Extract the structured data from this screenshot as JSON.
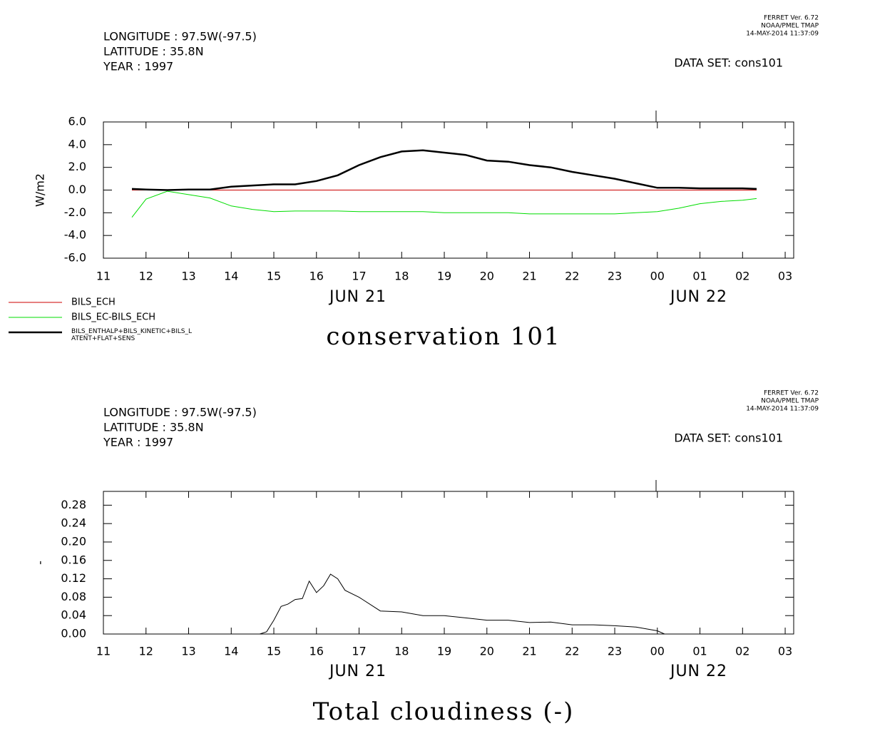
{
  "chart_data": [
    {
      "type": "line",
      "ferret": [
        "FERRET Ver. 6.72",
        "NOAA/PMEL TMAP",
        "14-MAY-2014 11:37:09"
      ],
      "info": [
        "LONGITUDE : 97.5W(-97.5)",
        "LATITUDE : 35.8N",
        "YEAR : 1997"
      ],
      "dataset": "DATA SET: cons101",
      "title": "conservation 101",
      "ylabel": "W/m2",
      "date_labels": [
        "JUN 21",
        "JUN 22"
      ],
      "xlim": [
        11,
        27.2
      ],
      "xticks": [
        11,
        12,
        13,
        14,
        15,
        16,
        17,
        18,
        19,
        20,
        21,
        22,
        23,
        {
          "value": 24,
          "label": "00"
        },
        {
          "value": 25,
          "label": "01"
        },
        {
          "value": 26,
          "label": "02"
        },
        {
          "value": 27,
          "label": "03"
        }
      ],
      "ylim": [
        -6,
        6
      ],
      "yticks": [
        {
          "value": -6,
          "label": "-6.0"
        },
        {
          "value": -4,
          "label": "-4.0"
        },
        {
          "value": -2,
          "label": "-2.0"
        },
        {
          "value": 0,
          "label": "0.0"
        },
        {
          "value": 2,
          "label": "2.0"
        },
        {
          "value": 4,
          "label": "4.0"
        },
        {
          "value": 6,
          "label": "6.0"
        }
      ],
      "x": [
        11.67,
        12,
        12.5,
        13,
        13.5,
        14,
        14.5,
        15,
        15.5,
        16,
        16.5,
        17,
        17.5,
        18,
        18.5,
        19,
        19.5,
        20,
        20.5,
        21,
        21.5,
        22,
        22.5,
        23,
        23.5,
        24,
        24.5,
        25,
        25.5,
        26,
        26.33
      ],
      "series": [
        {
          "name": "BILS_ECH",
          "color": "#cc0000",
          "linewidth": 1,
          "values": [
            0,
            0,
            0,
            0,
            0,
            0,
            0,
            0,
            0,
            0,
            0,
            0,
            0,
            0,
            0,
            0,
            0,
            0,
            0,
            0,
            0,
            0,
            0,
            0,
            0,
            0,
            0,
            0,
            0,
            0,
            0
          ]
        },
        {
          "name": "BILS_EC-BILS_ECH",
          "color": "#00dd00",
          "linewidth": 1,
          "values": [
            -2.4,
            -0.8,
            -0.1,
            -0.4,
            -0.7,
            -1.4,
            -1.7,
            -1.9,
            -1.85,
            -1.85,
            -1.85,
            -1.9,
            -1.9,
            -1.9,
            -1.9,
            -2.0,
            -2.0,
            -2.0,
            -2.0,
            -2.1,
            -2.1,
            -2.1,
            -2.1,
            -2.1,
            -2.0,
            -1.9,
            -1.6,
            -1.2,
            -1.0,
            -0.9,
            -0.75
          ]
        },
        {
          "name": "BILS_ENTHALP+BILS_KINETIC+BILS_LATENT+FLAT+SENS",
          "color": "#000000",
          "linewidth": 2.5,
          "values": [
            0.1,
            0.05,
            0.0,
            0.05,
            0.05,
            0.3,
            0.4,
            0.5,
            0.5,
            0.8,
            1.3,
            2.2,
            2.9,
            3.4,
            3.5,
            3.3,
            3.1,
            2.6,
            2.5,
            2.2,
            2.0,
            1.6,
            1.3,
            1.0,
            0.6,
            0.2,
            0.2,
            0.15,
            0.15,
            0.15,
            0.1
          ]
        }
      ]
    },
    {
      "type": "line",
      "ferret": [
        "FERRET Ver. 6.72",
        "NOAA/PMEL TMAP",
        "14-MAY-2014 11:37:09"
      ],
      "info": [
        "LONGITUDE : 97.5W(-97.5)",
        "LATITUDE : 35.8N",
        "YEAR : 1997"
      ],
      "dataset": "DATA SET: cons101",
      "title": "Total cloudiness (-)",
      "ylabel": "-",
      "date_labels": [
        "JUN 21",
        "JUN 22"
      ],
      "xlim": [
        11,
        27.2
      ],
      "xticks": [
        11,
        12,
        13,
        14,
        15,
        16,
        17,
        18,
        19,
        20,
        21,
        22,
        23,
        {
          "value": 24,
          "label": "00"
        },
        {
          "value": 25,
          "label": "01"
        },
        {
          "value": 26,
          "label": "02"
        },
        {
          "value": 27,
          "label": "03"
        }
      ],
      "ylim": [
        0,
        0.31
      ],
      "yticks": [
        {
          "value": 0,
          "label": "0.00"
        },
        {
          "value": 0.04,
          "label": "0.04"
        },
        {
          "value": 0.08,
          "label": "0.08"
        },
        {
          "value": 0.12,
          "label": "0.12"
        },
        {
          "value": 0.16,
          "label": "0.16"
        },
        {
          "value": 0.2,
          "label": "0.20"
        },
        {
          "value": 0.24,
          "label": "0.24"
        },
        {
          "value": 0.28,
          "label": "0.28"
        }
      ],
      "x": [
        14.67,
        14.83,
        15,
        15.17,
        15.33,
        15.5,
        15.67,
        15.83,
        16,
        16.17,
        16.33,
        16.5,
        16.67,
        17,
        17.5,
        18,
        18.5,
        19,
        19.5,
        20,
        20.5,
        21,
        21.5,
        22,
        22.5,
        23,
        23.5,
        24,
        24.17
      ],
      "series": [
        {
          "color": "#000000",
          "linewidth": 1,
          "values": [
            0,
            0.005,
            0.03,
            0.06,
            0.065,
            0.075,
            0.077,
            0.115,
            0.09,
            0.105,
            0.13,
            0.12,
            0.095,
            0.08,
            0.05,
            0.048,
            0.04,
            0.04,
            0.035,
            0.03,
            0.03,
            0.025,
            0.026,
            0.02,
            0.02,
            0.018,
            0.015,
            0.007,
            0
          ]
        }
      ]
    }
  ]
}
